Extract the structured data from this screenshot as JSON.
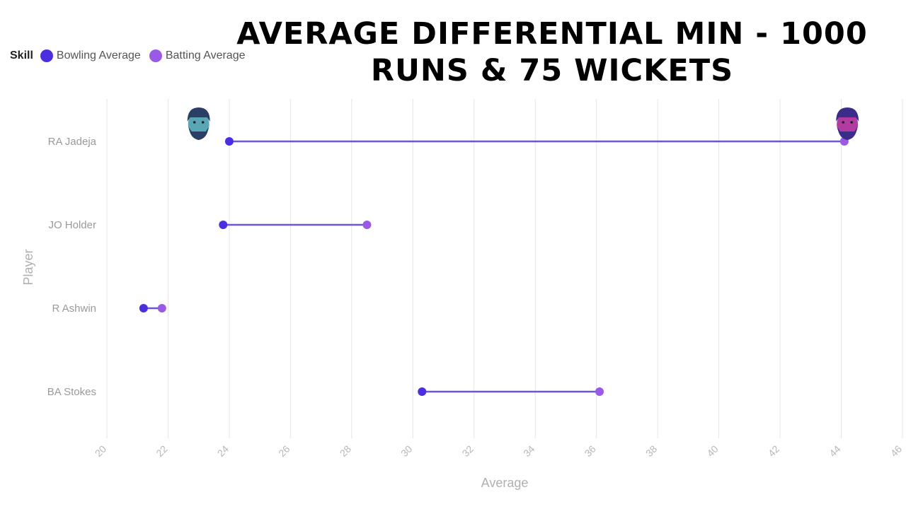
{
  "title": "AVERAGE DIFFERENTIAL MIN - 1000 RUNS & 75 WICKETS",
  "legend": {
    "title": "Skill",
    "items": [
      {
        "label": "Bowling Average",
        "color": "#4a2fe0"
      },
      {
        "label": "Batting Average",
        "color": "#9a5ae6"
      }
    ]
  },
  "chart_data": {
    "type": "dumbbell",
    "title": "AVERAGE DIFFERENTIAL MIN - 1000 RUNS & 75 WICKETS",
    "xlabel": "Average",
    "ylabel": "Player",
    "xlim": [
      20,
      46
    ],
    "xticks": [
      20,
      22,
      24,
      26,
      28,
      30,
      32,
      34,
      36,
      38,
      40,
      42,
      44,
      46
    ],
    "grid": "vertical",
    "legend_position": "top-left",
    "categories": [
      "RA Jadeja",
      "JO Holder",
      "R Ashwin",
      "BA Stokes"
    ],
    "series": [
      {
        "name": "Bowling Average",
        "color": "#4a2fe0",
        "values": [
          24.0,
          23.8,
          21.2,
          30.3
        ]
      },
      {
        "name": "Batting Average",
        "color": "#9a5ae6",
        "values": [
          44.1,
          28.5,
          21.8,
          36.1
        ]
      }
    ],
    "connector_color": "#6b55e0",
    "annotations": [
      {
        "type": "player-face-icon",
        "category": "RA Jadeja",
        "x": 23.0
      },
      {
        "type": "player-face-icon",
        "category": "RA Jadeja",
        "x": 44.2
      }
    ]
  }
}
